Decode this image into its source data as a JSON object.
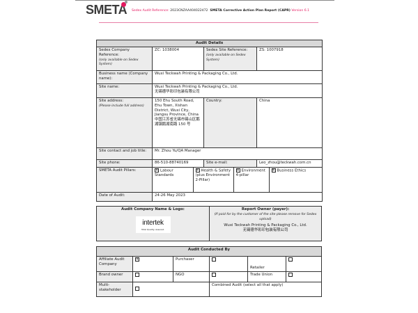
{
  "header": {
    "logo": "SMETA",
    "ref_label": "Sedex Audit Reference:",
    "ref_value": "2023CNZAA404022472",
    "report_title": "SMETA Corrective Action Plan Report (CAPR)",
    "version": "Version 6.1"
  },
  "audit_details": {
    "title": "Audit Details",
    "company_ref_label": "Sedex Company Reference:",
    "company_ref_note": "(only available on Sedex System)",
    "company_ref_value": "ZC: 1038004",
    "site_ref_label": "Sedex Site Reference:",
    "site_ref_note": "(only available on Sedex System)",
    "site_ref_value": "ZS: 1007918",
    "business_label": "Business name (Company name):",
    "business_value": "Wuxi Teckwah Printing & Packaging Co., Ltd.",
    "site_name_label": "Site name:",
    "site_name_value": "Wuxi Teckwah Printing & Packaging Co., Ltd.",
    "site_name_cn": "无锡德华彩印包装有限公司",
    "address_label": "Site address:",
    "address_note": "(Please include full address)",
    "address_value": "150 Ehu South Road, Ehu Town, Xishan District, Wuxi City, Jiangsu Province, China",
    "address_cn": "中国江苏省无锡市锡山区鹅湖镇鹅湖南路 150 号",
    "country_label": "Country:",
    "country_value": "China",
    "contact_label": "Site contact and job title:",
    "contact_value": "Mr. Zhou Yu/QA Manager",
    "phone_label": "Site phone:",
    "phone_value": "86-510-88740169",
    "email_label": "Site e-mail:",
    "email_value": "Leo_zhou@teckwah.com.cn",
    "pillars_label": "SMETA Audit Pillars:",
    "pillars": [
      {
        "label": "Labour Standards",
        "checked": true
      },
      {
        "label": "Health & Safety (plus Environment 2-Pillar)",
        "checked": true
      },
      {
        "label": "Environment 4-pillar",
        "checked": true
      },
      {
        "label": "Business Ethics",
        "checked": true
      }
    ],
    "date_label": "Date of Audit:",
    "date_value": "24-26 May 2023"
  },
  "company": {
    "audit_company_label": "Audit Company Name & Logo:",
    "logo_text": "intertek",
    "logo_tagline": "Total Quality. Assured.",
    "owner_label": "Report Owner (payer):",
    "owner_note": "(If paid for by the customer of the site please remove for Sedex upload)",
    "owner_value": "Wuxi Teckwah Printing & Packaging Co., Ltd.",
    "owner_cn": "无锡德华彩印包装有限公司"
  },
  "conducted": {
    "title": "Audit Conducted By",
    "affiliate": "Affiliate Audit Company",
    "purchaser": "Purchaser",
    "retailer": "Retailer",
    "brand_owner": "Brand owner",
    "ngo": "NGO",
    "trade_union": "Trade Union",
    "multi": "Multi-stakeholder",
    "combined": "Combined Audit (select all that apply)",
    "checked_mark": "☒"
  }
}
